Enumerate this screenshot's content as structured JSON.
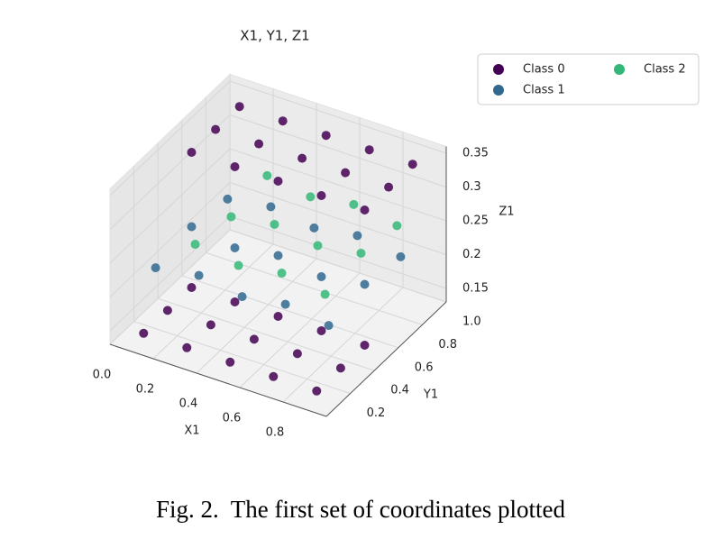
{
  "chart_data": {
    "type": "scatter3d",
    "title": "X1, Y1, Z1",
    "xlabel": "X1",
    "ylabel": "Y1",
    "zlabel": "Z1",
    "xlim": [
      0,
      1
    ],
    "ylim": [
      0,
      1
    ],
    "zlim": [
      0.13,
      0.36
    ],
    "xticks": [
      {
        "value": 0,
        "label": "0.0"
      },
      0.2,
      0.4,
      0.6,
      0.8
    ],
    "yticks": [
      0.2,
      0.4,
      0.6,
      0.8,
      {
        "value": 1,
        "label": "1.0"
      }
    ],
    "zticks": [
      0.15,
      0.2,
      0.25,
      0.3,
      0.35
    ],
    "grid": true,
    "legend": "upper right",
    "series": [
      {
        "name": "Class 0",
        "color": "#440154",
        "x": [
          0.1,
          0.3,
          0.5,
          0.7,
          0.9,
          0.1,
          0.3,
          0.5,
          0.7,
          0.9,
          0.1,
          0.3,
          0.5,
          0.7,
          0.9,
          0.1,
          0.3,
          0.5,
          0.7,
          0.9,
          0.1,
          0.3,
          0.5,
          0.7,
          0.9,
          0.1,
          0.3,
          0.5,
          0.7,
          0.9
        ],
        "y": [
          0.5,
          0.5,
          0.5,
          0.5,
          0.5,
          0.7,
          0.7,
          0.7,
          0.7,
          0.7,
          0.9,
          0.9,
          0.9,
          0.9,
          0.9,
          0.1,
          0.1,
          0.1,
          0.1,
          0.1,
          0.3,
          0.3,
          0.3,
          0.3,
          0.3,
          0.5,
          0.5,
          0.5,
          0.5,
          0.5
        ],
        "z": [
          0.34,
          0.34,
          0.34,
          0.34,
          0.34,
          0.34,
          0.34,
          0.34,
          0.34,
          0.34,
          0.34,
          0.34,
          0.34,
          0.34,
          0.34,
          0.14,
          0.14,
          0.14,
          0.14,
          0.14,
          0.14,
          0.14,
          0.14,
          0.14,
          0.14,
          0.14,
          0.14,
          0.14,
          0.14,
          0.14
        ]
      },
      {
        "name": "Class 1",
        "color": "#31688e",
        "x": [
          0.1,
          0.3,
          0.5,
          0.7,
          0.9,
          0.1,
          0.3,
          0.5,
          0.7,
          0.9,
          0.1,
          0.3,
          0.5,
          0.7,
          0.9
        ],
        "y": [
          0.2,
          0.2,
          0.2,
          0.2,
          0.2,
          0.5,
          0.5,
          0.5,
          0.5,
          0.5,
          0.8,
          0.8,
          0.8,
          0.8,
          0.8
        ],
        "z": [
          0.22,
          0.23,
          0.22,
          0.23,
          0.22,
          0.23,
          0.22,
          0.23,
          0.22,
          0.23,
          0.22,
          0.23,
          0.22,
          0.23,
          0.22
        ]
      },
      {
        "name": "Class 2",
        "color": "#35b779",
        "x": [
          0.2,
          0.4,
          0.6,
          0.8,
          0.2,
          0.4,
          0.6,
          0.8,
          0.2,
          0.4,
          0.6,
          0.8
        ],
        "y": [
          0.35,
          0.35,
          0.35,
          0.35,
          0.65,
          0.65,
          0.65,
          0.65,
          0.95,
          0.95,
          0.95,
          0.95
        ],
        "z": [
          0.24,
          0.23,
          0.24,
          0.23,
          0.23,
          0.24,
          0.23,
          0.24,
          0.24,
          0.23,
          0.24,
          0.23
        ]
      }
    ]
  },
  "caption": "Fig. 2.  The first set of coordinates plotted"
}
